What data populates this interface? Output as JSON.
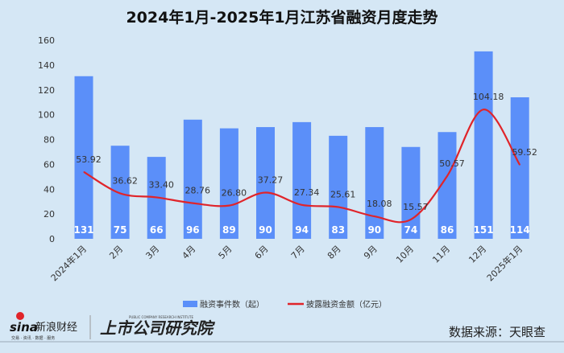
{
  "chart_data": {
    "type": "bar+line",
    "title": "2024年1月-2025年1月江苏省融资月度走势",
    "categories": [
      "2024年1月",
      "2月",
      "3月",
      "4月",
      "5月",
      "6月",
      "7月",
      "8月",
      "9月",
      "10月",
      "11月",
      "12月",
      "2025年1月"
    ],
    "series": [
      {
        "name": "融资事件数（起）",
        "type": "bar",
        "color": "#5b8ff9",
        "values": [
          131,
          75,
          66,
          96,
          89,
          90,
          94,
          83,
          90,
          74,
          86,
          151,
          114
        ]
      },
      {
        "name": "披露融资金额（亿元）",
        "type": "line",
        "color": "#e0242a",
        "values": [
          53.92,
          36.62,
          33.4,
          28.76,
          26.8,
          37.27,
          27.34,
          25.61,
          18.08,
          15.57,
          50.57,
          104.18,
          59.52
        ]
      }
    ],
    "ylim": [
      0,
      160
    ],
    "yticks": [
      0,
      20,
      40,
      60,
      80,
      100,
      120,
      140,
      160
    ],
    "legend": "bottom",
    "grid": false
  },
  "footer": {
    "brand1": "sina新浪财经",
    "brand1_sub": "交易 · 资讯 · 数据 · 服务",
    "brand2": "上市公司研究院",
    "brand2_sub": "PUBLIC COMPANY RESEARCH INSTITUTE",
    "source": "数据来源：天眼查"
  }
}
